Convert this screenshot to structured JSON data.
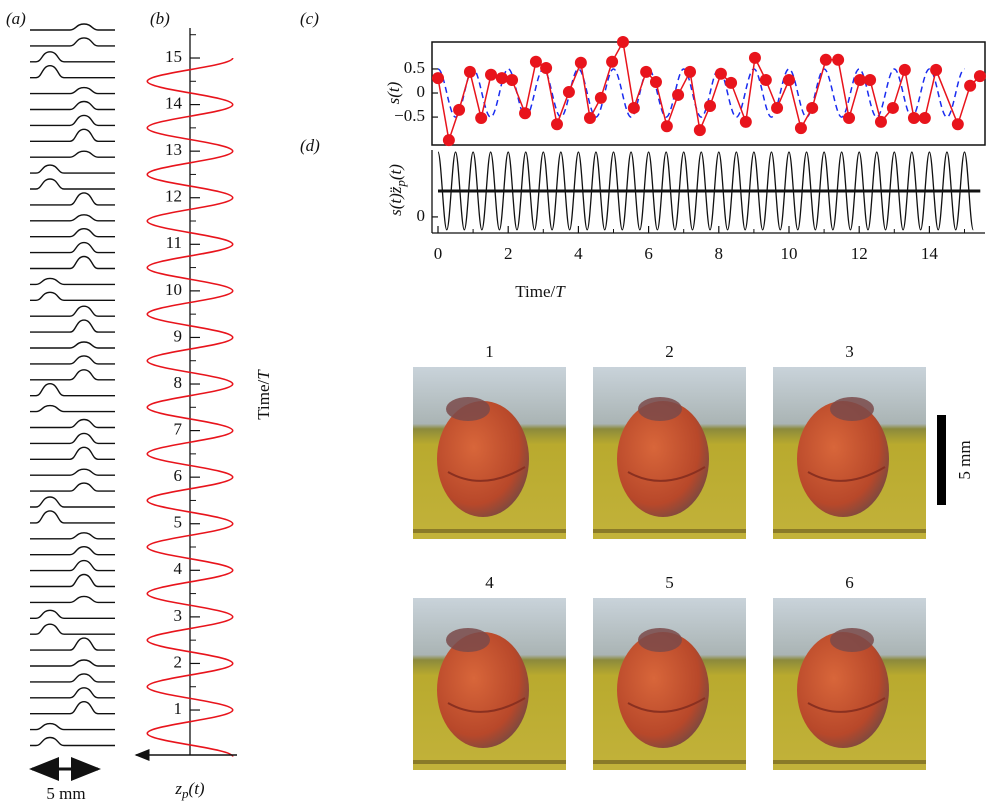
{
  "panel_a": {
    "label": "(a)",
    "scale_label": "5 mm"
  },
  "chart_data": [
    {
      "type": "line",
      "panel": "(b)",
      "orientation": "vertical",
      "xlabel": [
        {
          "text": "Time/"
        },
        {
          "text": "T",
          "italic": true
        }
      ],
      "ylabel": [
        {
          "text": "z",
          "italic": true
        },
        {
          "text": "p",
          "italic": true,
          "sub": true
        },
        {
          "text": "(t)",
          "italic": true
        }
      ],
      "xlim": [
        0,
        15.2
      ],
      "xticks": [
        1,
        2,
        3,
        4,
        5,
        6,
        7,
        8,
        9,
        10,
        11,
        12,
        13,
        14,
        15
      ],
      "ylim": [
        -1.1,
        1.1
      ],
      "series": [
        {
          "color": "#e8141c",
          "style": "solid",
          "x": [
            0,
            0.5,
            1,
            1.5,
            2,
            2.5,
            3,
            3.5,
            4,
            4.5,
            5,
            5.5,
            6,
            6.5,
            7,
            7.5,
            8,
            8.5,
            9,
            9.5,
            10,
            10.5,
            11,
            11.5,
            12,
            12.5,
            13,
            13.5,
            14,
            14.5,
            15
          ],
          "values": [
            1,
            -1,
            1,
            -1,
            1,
            -1,
            1,
            -1,
            1,
            -1,
            1,
            -1,
            1,
            -1,
            1,
            -1,
            1,
            -1,
            1,
            -1,
            1,
            -1,
            1,
            -1,
            1,
            -1,
            1,
            -1,
            1,
            -1,
            1
          ]
        }
      ]
    },
    {
      "type": "line",
      "panel": "(c)",
      "ylabel": [
        {
          "text": "s(t)",
          "italic": true
        }
      ],
      "xlim": [
        0,
        15.45
      ],
      "ylim": [
        -1.08,
        1.06
      ],
      "yticks": [
        0.5,
        0,
        {
          "value": -0.5,
          "label": "−0.5"
        }
      ],
      "series": [
        {
          "color": "#1a2cf0",
          "style": "dashed",
          "x": [
            0,
            0.5,
            1,
            1.5,
            2,
            2.5,
            3,
            3.5,
            4,
            4.5,
            5,
            5.5,
            6,
            6.5,
            7,
            7.5,
            8,
            8.5,
            9,
            9.5,
            10,
            10.5,
            11,
            11.5,
            12,
            12.5,
            13,
            13.5,
            14,
            14.5,
            15
          ],
          "values": [
            0.5,
            -0.5,
            0.5,
            -0.5,
            0.5,
            -0.5,
            0.5,
            -0.5,
            0.5,
            -0.5,
            0.5,
            -0.5,
            0.5,
            -0.5,
            0.5,
            -0.5,
            0.5,
            -0.5,
            0.5,
            -0.5,
            0.5,
            -0.5,
            0.5,
            -0.5,
            0.5,
            -0.5,
            0.5,
            -0.5,
            0.5,
            -0.5,
            0.5
          ]
        },
        {
          "color": "#e8141c",
          "style": "solid",
          "markers": true,
          "x": [
            0,
            0.31,
            0.6,
            0.91,
            1.23,
            1.51,
            1.82,
            2.11,
            2.48,
            2.79,
            3.08,
            3.39,
            3.73,
            4.07,
            4.33,
            4.64,
            4.96,
            5.27,
            5.58,
            5.93,
            6.21,
            6.52,
            6.84,
            7.18,
            7.46,
            7.75,
            8.06,
            8.35,
            8.77,
            9.03,
            9.34,
            9.66,
            10.0,
            10.34,
            10.66,
            11.05,
            11.4,
            11.71,
            12.02,
            12.31,
            12.62,
            12.96,
            13.3,
            13.56,
            13.87,
            14.19,
            14.81,
            15.16,
            15.44
          ],
          "values": [
            0.31,
            -0.98,
            -0.35,
            0.44,
            -0.52,
            0.38,
            0.31,
            0.27,
            -0.42,
            0.65,
            0.52,
            -0.65,
            0.02,
            0.63,
            -0.52,
            -0.1,
            0.65,
            1.06,
            -0.31,
            0.44,
            0.23,
            -0.69,
            -0.04,
            0.44,
            -0.77,
            -0.27,
            0.4,
            0.21,
            -0.6,
            0.73,
            0.27,
            -0.31,
            0.27,
            -0.73,
            -0.31,
            0.69,
            0.69,
            -0.52,
            0.27,
            0.27,
            -0.6,
            -0.31,
            0.48,
            -0.52,
            -0.52,
            0.48,
            -0.65,
            0.15,
            0.35
          ]
        }
      ]
    },
    {
      "type": "line",
      "panel": "(d)",
      "ylabel": [
        {
          "text": "s(t)",
          "italic": true
        },
        {
          "text": "z̈",
          "italic": true
        },
        {
          "text": "p",
          "italic": true,
          "sub": true
        },
        {
          "text": "(t)",
          "italic": true
        }
      ],
      "xlabel": [
        {
          "text": "Time/"
        },
        {
          "text": "T",
          "italic": true
        }
      ],
      "xlim": [
        0,
        15.45
      ],
      "xticks": [
        0,
        2,
        4,
        6,
        8,
        10,
        12,
        14
      ],
      "ylim": [
        -0.62,
        2.58
      ],
      "yticks": [
        0
      ],
      "series": [
        {
          "color": "#111111",
          "style": "solid",
          "x": [
            0,
            0.25,
            0.5,
            0.75,
            1,
            1.25,
            1.5,
            1.75,
            2,
            2.25,
            2.5,
            2.75,
            3,
            3.25,
            3.5,
            3.75,
            4,
            4.25,
            4.5,
            4.75,
            5,
            5.25,
            5.5,
            5.75,
            6,
            6.25,
            6.5,
            6.75,
            7,
            7.25,
            7.5,
            7.75,
            8,
            8.25,
            8.5,
            8.75,
            9,
            9.25,
            9.5,
            9.75,
            10,
            10.25,
            10.5,
            10.75,
            11,
            11.25,
            11.5,
            11.75,
            12,
            12.25,
            12.5,
            12.75,
            13,
            13.25,
            13.5,
            13.75,
            14,
            14.25,
            14.5,
            14.75,
            15,
            15.25
          ],
          "values": [
            2.5,
            -0.5,
            2.5,
            -0.5,
            2.5,
            -0.5,
            2.5,
            -0.5,
            2.5,
            -0.5,
            2.5,
            -0.5,
            2.5,
            -0.5,
            2.5,
            -0.5,
            2.5,
            -0.5,
            2.5,
            -0.5,
            2.5,
            -0.5,
            2.5,
            -0.5,
            2.5,
            -0.5,
            2.5,
            -0.5,
            2.5,
            -0.5,
            2.5,
            -0.5,
            2.5,
            -0.5,
            2.5,
            -0.5,
            2.5,
            -0.5,
            2.5,
            -0.5,
            2.5,
            -0.5,
            2.5,
            -0.5,
            2.5,
            -0.5,
            2.5,
            -0.5,
            2.5,
            -0.5,
            2.5,
            -0.5,
            2.5,
            -0.5,
            2.5,
            -0.5,
            2.5,
            -0.5,
            2.5,
            -0.5,
            2.5,
            -0.5
          ]
        },
        {
          "color": "#111111",
          "style": "thick",
          "x": [
            0,
            15.45
          ],
          "values": [
            1,
            1
          ]
        }
      ]
    }
  ],
  "photos": {
    "labels": [
      "1",
      "2",
      "3",
      "4",
      "5",
      "6"
    ],
    "scale_label": "5 mm"
  }
}
